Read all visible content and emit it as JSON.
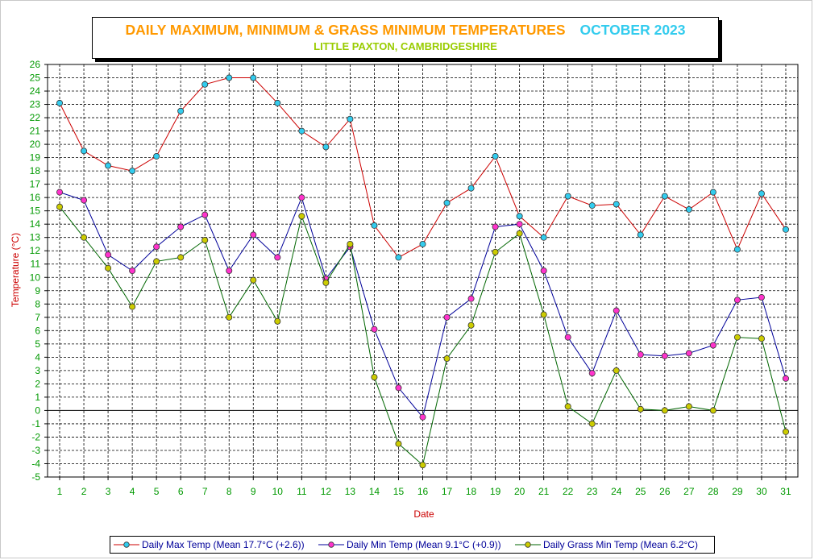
{
  "title": "DAILY MAXIMUM, MINIMUM & GRASS MINIMUM TEMPERATURES",
  "title_month": "OCTOBER 2023",
  "subtitle": "LITTLE PAXTON, CAMBRIDGESHIRE",
  "colors": {
    "title": "#FF9900",
    "month": "#33CCEE",
    "subtitle": "#99CC00",
    "ylabel": "#CC0000",
    "xlabel": "#CC0000",
    "ticks": "#009900",
    "legend_text": "#000099"
  },
  "chart_data": {
    "type": "line",
    "xlabel": "Date",
    "ylabel": "Temperature (°C)",
    "ylim": [
      -5,
      26
    ],
    "grid": true,
    "legend_position": "bottom",
    "x": [
      1,
      2,
      3,
      4,
      5,
      6,
      7,
      8,
      9,
      10,
      11,
      12,
      13,
      14,
      15,
      16,
      17,
      18,
      19,
      20,
      21,
      22,
      23,
      24,
      25,
      26,
      27,
      28,
      29,
      30,
      31
    ],
    "series": [
      {
        "name": "Daily Max Temp (Mean 17.7°C (+2.6))",
        "line_color": "#CC0000",
        "marker_color": "#33CCEE",
        "values": [
          23.1,
          19.5,
          18.4,
          18.0,
          19.1,
          22.5,
          24.5,
          25.0,
          25.0,
          23.1,
          21.0,
          19.8,
          21.9,
          13.9,
          11.5,
          12.5,
          15.6,
          16.7,
          19.1,
          14.6,
          13.0,
          16.1,
          15.4,
          15.5,
          13.2,
          16.1,
          15.1,
          16.4,
          12.1,
          16.3,
          13.6
        ]
      },
      {
        "name": "Daily Min Temp (Mean 9.1°C (+0.9))",
        "line_color": "#000099",
        "marker_color": "#FF33CC",
        "values": [
          16.4,
          15.8,
          11.7,
          10.5,
          12.3,
          13.8,
          14.7,
          10.5,
          13.2,
          11.5,
          16.0,
          9.9,
          12.3,
          6.1,
          1.7,
          -0.5,
          7.0,
          8.4,
          13.8,
          14.0,
          10.5,
          5.5,
          2.8,
          7.5,
          4.2,
          4.1,
          4.3,
          4.9,
          8.3,
          8.5,
          2.4
        ]
      },
      {
        "name": "Daily Grass Min Temp (Mean 6.2°C)",
        "line_color": "#006600",
        "marker_color": "#CCCC00",
        "values": [
          15.3,
          13.0,
          10.7,
          7.8,
          11.2,
          11.5,
          12.8,
          7.0,
          9.8,
          6.7,
          14.6,
          9.6,
          12.5,
          2.5,
          -2.5,
          -4.1,
          3.9,
          6.4,
          11.9,
          13.3,
          7.2,
          0.3,
          -1.0,
          3.0,
          0.1,
          0.0,
          0.3,
          0.0,
          5.5,
          5.4,
          -1.6
        ]
      }
    ]
  }
}
